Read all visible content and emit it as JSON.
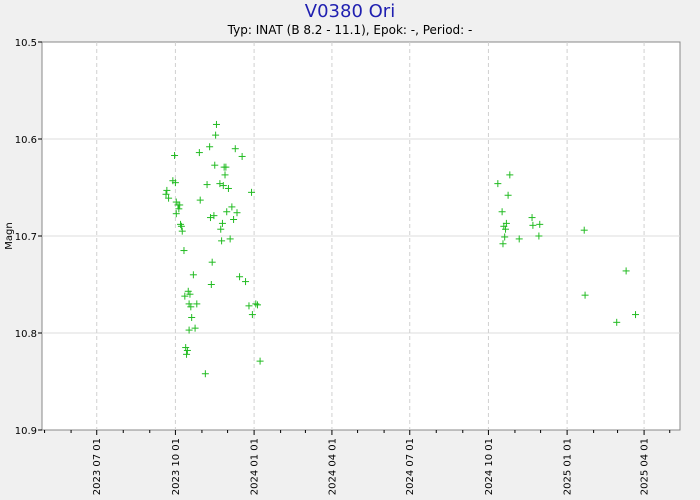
{
  "header": {
    "title": "V0380 Ori",
    "subtitle": "Typ: INAT (B 8.2 - 11.1), Epok: -, Period: -"
  },
  "chart_data": {
    "type": "scatter",
    "ylabel": "Magn",
    "y_inverted": true,
    "ylim": [
      10.5,
      10.9
    ],
    "yticks": [
      10.5,
      10.6,
      10.7,
      10.8,
      10.9
    ],
    "ytick_labels": [
      "10.5",
      "10.6",
      "10.7",
      "10.8",
      "10.9"
    ],
    "xlim": [
      "2023-04-28",
      "2025-05-13"
    ],
    "xticks": [
      "2023-07-01",
      "2023-10-01",
      "2024-01-01",
      "2024-04-01",
      "2024-07-01",
      "2024-10-01",
      "2025-01-01",
      "2025-04-01"
    ],
    "xtick_labels": [
      "2023 07 01",
      "2023 10 01",
      "2024 01 01",
      "2024 04 01",
      "2024 07 01",
      "2024 10 01",
      "2025 01 01",
      "2025 04 01"
    ],
    "grid": true,
    "marker": "+",
    "marker_color": "#22bb22",
    "series": [
      {
        "points": [
          [
            "2023-09-20",
            10.657
          ],
          [
            "2023-09-21",
            10.653
          ],
          [
            "2023-09-23",
            10.661
          ],
          [
            "2023-09-28",
            10.643
          ],
          [
            "2023-09-30",
            10.617
          ],
          [
            "2023-10-01",
            10.645
          ],
          [
            "2023-10-02",
            10.665
          ],
          [
            "2023-10-02",
            10.677
          ],
          [
            "2023-10-04",
            10.668
          ],
          [
            "2023-10-05",
            10.672
          ],
          [
            "2023-10-06",
            10.668
          ],
          [
            "2023-10-07",
            10.688
          ],
          [
            "2023-10-08",
            10.69
          ],
          [
            "2023-10-09",
            10.695
          ],
          [
            "2023-10-11",
            10.715
          ],
          [
            "2023-10-12",
            10.762
          ],
          [
            "2023-10-13",
            10.815
          ],
          [
            "2023-10-14",
            10.822
          ],
          [
            "2023-10-15",
            10.818
          ],
          [
            "2023-10-16",
            10.757
          ],
          [
            "2023-10-17",
            10.77
          ],
          [
            "2023-10-17",
            10.797
          ],
          [
            "2023-10-18",
            10.76
          ],
          [
            "2023-10-19",
            10.773
          ],
          [
            "2023-10-20",
            10.784
          ],
          [
            "2023-10-22",
            10.74
          ],
          [
            "2023-10-24",
            10.795
          ],
          [
            "2023-10-26",
            10.77
          ],
          [
            "2023-10-29",
            10.614
          ],
          [
            "2023-10-30",
            10.663
          ],
          [
            "2023-11-05",
            10.842
          ],
          [
            "2023-11-07",
            10.647
          ],
          [
            "2023-11-10",
            10.608
          ],
          [
            "2023-11-11",
            10.681
          ],
          [
            "2023-11-12",
            10.75
          ],
          [
            "2023-11-13",
            10.727
          ],
          [
            "2023-11-15",
            10.679
          ],
          [
            "2023-11-16",
            10.627
          ],
          [
            "2023-11-17",
            10.596
          ],
          [
            "2023-11-18",
            10.585
          ],
          [
            "2023-11-22",
            10.646
          ],
          [
            "2023-11-23",
            10.693
          ],
          [
            "2023-11-24",
            10.705
          ],
          [
            "2023-11-25",
            10.687
          ],
          [
            "2023-11-26",
            10.648
          ],
          [
            "2023-11-27",
            10.629
          ],
          [
            "2023-11-28",
            10.637
          ],
          [
            "2023-11-29",
            10.629
          ],
          [
            "2023-11-30",
            10.675
          ],
          [
            "2023-12-02",
            10.651
          ],
          [
            "2023-12-04",
            10.703
          ],
          [
            "2023-12-06",
            10.67
          ],
          [
            "2023-12-08",
            10.683
          ],
          [
            "2023-12-10",
            10.61
          ],
          [
            "2023-12-12",
            10.676
          ],
          [
            "2023-12-15",
            10.742
          ],
          [
            "2023-12-18",
            10.618
          ],
          [
            "2023-12-22",
            10.747
          ],
          [
            "2023-12-26",
            10.772
          ],
          [
            "2023-12-29",
            10.655
          ],
          [
            "2023-12-30",
            10.781
          ],
          [
            "2024-01-03",
            10.77
          ],
          [
            "2024-01-05",
            10.771
          ],
          [
            "2024-01-08",
            10.829
          ],
          [
            "2024-10-12",
            10.646
          ],
          [
            "2024-10-17",
            10.675
          ],
          [
            "2024-10-18",
            10.708
          ],
          [
            "2024-10-19",
            10.69
          ],
          [
            "2024-10-20",
            10.701
          ],
          [
            "2024-10-21",
            10.693
          ],
          [
            "2024-10-22",
            10.687
          ],
          [
            "2024-10-24",
            10.658
          ],
          [
            "2024-10-26",
            10.637
          ],
          [
            "2024-11-06",
            10.703
          ],
          [
            "2024-11-21",
            10.681
          ],
          [
            "2024-11-22",
            10.689
          ],
          [
            "2024-11-29",
            10.7
          ],
          [
            "2024-11-30",
            10.688
          ],
          [
            "2025-01-21",
            10.694
          ],
          [
            "2025-01-22",
            10.761
          ],
          [
            "2025-02-28",
            10.789
          ],
          [
            "2025-03-11",
            10.736
          ],
          [
            "2025-03-22",
            10.781
          ]
        ]
      }
    ]
  }
}
